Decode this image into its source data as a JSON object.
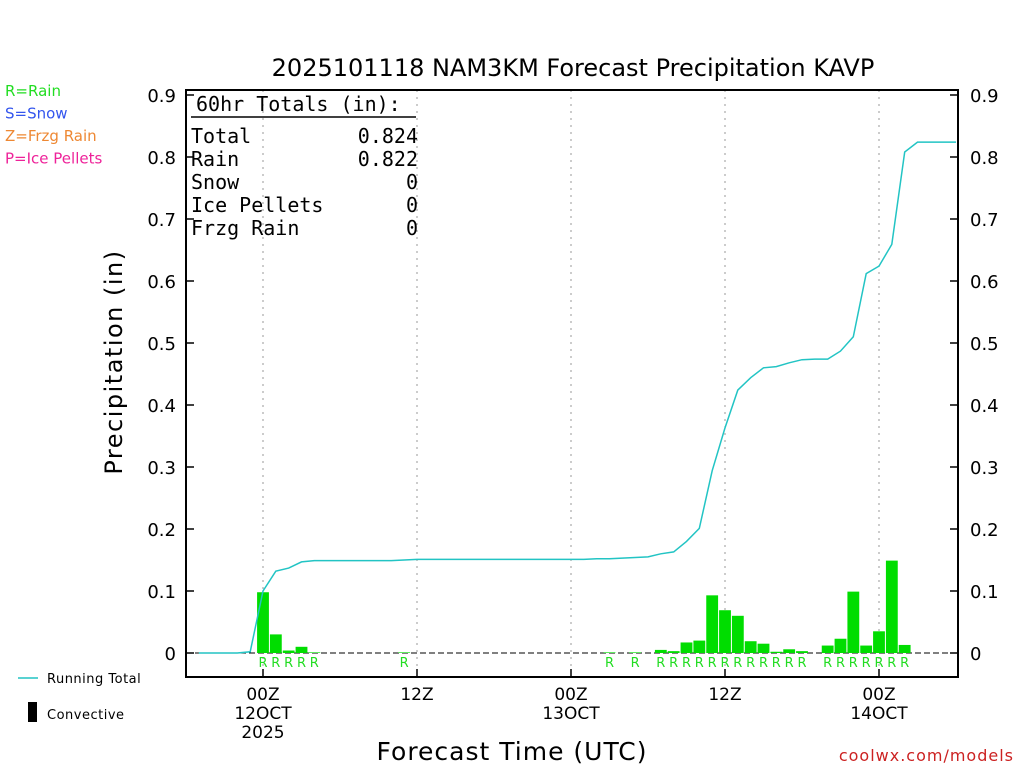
{
  "chart_data": {
    "type": "bar",
    "title": "2025101118 NAM3KM Forecast Precipitation KAVP",
    "xlabel": "Forecast Time (UTC)",
    "ylabel": "Precipitation (in)",
    "ylim": [
      0,
      0.9
    ],
    "xlim": [
      -6,
      54
    ],
    "yticks": [
      "0",
      "0.1",
      "0.2",
      "0.3",
      "0.4",
      "0.5",
      "0.6",
      "0.7",
      "0.8",
      "0.9"
    ],
    "xticks": [
      {
        "hour": 0,
        "lines": [
          "00Z",
          "12OCT",
          "2025"
        ]
      },
      {
        "hour": 12,
        "lines": [
          "12Z"
        ]
      },
      {
        "hour": 24,
        "lines": [
          "00Z",
          "13OCT"
        ]
      },
      {
        "hour": 36,
        "lines": [
          "12Z"
        ]
      },
      {
        "hour": 48,
        "lines": [
          "00Z",
          "14OCT"
        ]
      }
    ],
    "bars": [
      {
        "hour": 0,
        "value": 0.098,
        "type": "R"
      },
      {
        "hour": 1,
        "value": 0.03,
        "type": "R"
      },
      {
        "hour": 2,
        "value": 0.004,
        "type": "R"
      },
      {
        "hour": 3,
        "value": 0.01,
        "type": "R"
      },
      {
        "hour": 4,
        "value": 0.001,
        "type": "R"
      },
      {
        "hour": 11,
        "value": 0.001,
        "type": "R"
      },
      {
        "hour": 27,
        "value": 0.001,
        "type": "R"
      },
      {
        "hour": 29,
        "value": 0.001,
        "type": "R"
      },
      {
        "hour": 31,
        "value": 0.005,
        "type": "R"
      },
      {
        "hour": 32,
        "value": 0.003,
        "type": "R"
      },
      {
        "hour": 33,
        "value": 0.017,
        "type": "R"
      },
      {
        "hour": 34,
        "value": 0.02,
        "type": "R"
      },
      {
        "hour": 35,
        "value": 0.093,
        "type": "R"
      },
      {
        "hour": 36,
        "value": 0.069,
        "type": "R"
      },
      {
        "hour": 37,
        "value": 0.06,
        "type": "R"
      },
      {
        "hour": 38,
        "value": 0.019,
        "type": "R"
      },
      {
        "hour": 39,
        "value": 0.015,
        "type": "R"
      },
      {
        "hour": 40,
        "value": 0.002,
        "type": "R"
      },
      {
        "hour": 41,
        "value": 0.006,
        "type": "R"
      },
      {
        "hour": 42,
        "value": 0.003,
        "type": "R"
      },
      {
        "hour": 44,
        "value": 0.012,
        "type": "R"
      },
      {
        "hour": 45,
        "value": 0.023,
        "type": "R"
      },
      {
        "hour": 46,
        "value": 0.099,
        "type": "R"
      },
      {
        "hour": 47,
        "value": 0.012,
        "type": "R"
      },
      {
        "hour": 48,
        "value": 0.035,
        "type": "R"
      },
      {
        "hour": 49,
        "value": 0.149,
        "type": "R"
      },
      {
        "hour": 50,
        "value": 0.013,
        "type": "R"
      }
    ],
    "running_total": {
      "hours": [
        -5,
        -4,
        -3,
        -2,
        -1,
        0,
        1,
        2,
        3,
        4,
        5,
        6,
        7,
        8,
        9,
        10,
        11,
        12,
        13,
        14,
        15,
        16,
        17,
        18,
        19,
        20,
        21,
        22,
        23,
        24,
        25,
        26,
        27,
        28,
        29,
        30,
        31,
        32,
        33,
        34,
        35,
        36,
        37,
        38,
        39,
        40,
        41,
        42,
        43,
        44,
        45,
        46,
        47,
        48,
        49,
        50,
        51,
        52,
        53,
        54
      ],
      "values": [
        0,
        0,
        0,
        0,
        0.002,
        0.1,
        0.132,
        0.137,
        0.147,
        0.149,
        0.149,
        0.149,
        0.149,
        0.149,
        0.149,
        0.149,
        0.15,
        0.151,
        0.151,
        0.151,
        0.151,
        0.151,
        0.151,
        0.151,
        0.151,
        0.151,
        0.151,
        0.151,
        0.151,
        0.151,
        0.151,
        0.152,
        0.152,
        0.153,
        0.154,
        0.155,
        0.16,
        0.163,
        0.18,
        0.201,
        0.294,
        0.363,
        0.424,
        0.444,
        0.46,
        0.462,
        0.468,
        0.473,
        0.474,
        0.474,
        0.487,
        0.51,
        0.612,
        0.624,
        0.659,
        0.808,
        0.824,
        0.824,
        0.824,
        0.824
      ]
    },
    "totals_box": {
      "heading": "60hr Totals (in):",
      "rows": [
        {
          "label": "Total",
          "value": "0.824"
        },
        {
          "label": "Rain",
          "value": "0.822"
        },
        {
          "label": "Snow",
          "value": "0"
        },
        {
          "label": "Ice Pellets",
          "value": "0"
        },
        {
          "label": "Frzg Rain",
          "value": "0"
        }
      ]
    },
    "legend_types": [
      {
        "text": "R=Rain",
        "color": "#22dd22"
      },
      {
        "text": "S=Snow",
        "color": "#3355ee"
      },
      {
        "text": "Z=Frzg Rain",
        "color": "#ee8833"
      },
      {
        "text": "P=Ice Pellets",
        "color": "#ee2299"
      }
    ],
    "legend_lines": [
      {
        "text": "Running Total",
        "color": "#22c4c4",
        "kind": "line"
      },
      {
        "text": "Convective",
        "color": "#000000",
        "kind": "block"
      }
    ],
    "credit": "coolwx.com/models",
    "colors": {
      "bar": "#00dd00",
      "line": "#22c4c4",
      "rain_label": "#22dd22",
      "credit": "#cc2222"
    }
  }
}
